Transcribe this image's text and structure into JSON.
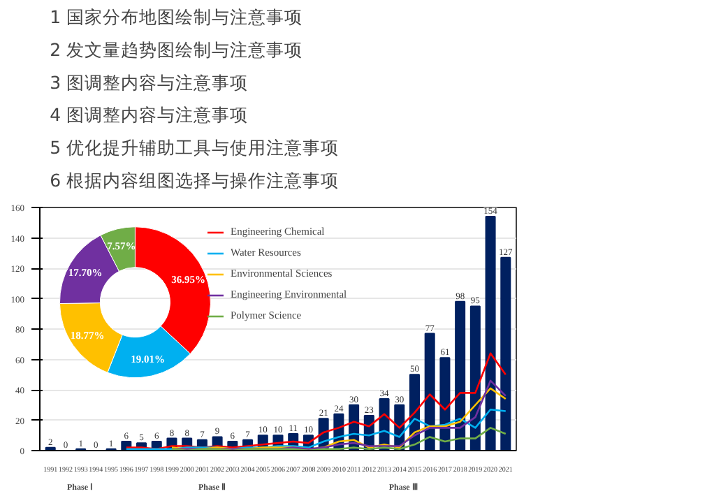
{
  "chart_data": [
    {
      "type": "other",
      "annotations": [
        "1 国家分布地图绘制与注意事项",
        "2 发文量趋势图绘制与注意事项",
        "3 图调整内容与注意事项",
        "4 图调整内容与注意事项",
        "5 优化提升辅助工具与使用注意事项",
        "6 根据内容组图选择与操作注意事项"
      ]
    },
    {
      "type": "bar",
      "categories": [
        "1991",
        "1992",
        "1993",
        "1994",
        "1995",
        "1996",
        "1997",
        "1998",
        "1999",
        "2000",
        "2001",
        "2002",
        "2003",
        "2004",
        "2005",
        "2006",
        "2007",
        "2008",
        "2009",
        "2010",
        "2011",
        "2012",
        "2013",
        "2014",
        "2015",
        "2016",
        "2017",
        "2018",
        "2019",
        "2020",
        "2021"
      ],
      "ylim": [
        0,
        160
      ],
      "yticks": [
        0,
        20,
        40,
        60,
        80,
        100,
        120,
        140,
        160
      ],
      "grid": "y",
      "legend": "top",
      "annotations": [
        "Phase Ⅰ",
        "Phase Ⅱ",
        "Phase Ⅲ"
      ],
      "series": [
        {
          "type": "bar",
          "color": "#002060",
          "values": [
            2,
            0,
            1,
            0,
            1,
            6,
            5,
            6,
            8,
            8,
            7,
            9,
            6,
            7,
            10,
            10,
            11,
            10,
            21,
            24,
            30,
            23,
            34,
            30,
            50,
            77,
            61,
            98,
            95,
            154,
            127
          ],
          "value_labels": [
            "2",
            "0",
            "1",
            "0",
            "1",
            "6",
            "5",
            "6",
            "8",
            "8",
            "7",
            "9",
            "6",
            "7",
            "10",
            "10",
            "11",
            "10",
            "21",
            "24",
            "30",
            "23",
            "34",
            "30",
            "50",
            "77",
            "61",
            "98",
            "95",
            "154",
            "127"
          ]
        },
        {
          "type": "line",
          "name": "Engineering Chemical",
          "color": "#ff0000",
          "values": [
            null,
            null,
            null,
            null,
            null,
            2,
            2,
            1,
            3,
            3,
            2,
            3,
            2,
            3,
            4,
            5,
            6,
            5,
            12,
            15,
            19,
            16,
            24,
            15,
            25,
            37,
            27,
            38,
            38,
            64,
            50
          ]
        },
        {
          "type": "line",
          "name": "Water Resources",
          "color": "#00b0f0",
          "values": [
            null,
            null,
            null,
            null,
            null,
            1,
            1,
            1,
            1,
            2,
            2,
            2,
            1,
            2,
            2,
            3,
            3,
            2,
            6,
            9,
            11,
            10,
            13,
            9,
            21,
            16,
            17,
            21,
            15,
            27,
            26
          ]
        },
        {
          "type": "line",
          "name": "Environmental Sciences",
          "color": "#ffc000",
          "values": [
            null,
            null,
            null,
            null,
            null,
            null,
            null,
            null,
            2,
            1,
            1,
            2,
            1,
            1,
            2,
            2,
            2,
            1,
            2,
            6,
            7,
            2,
            4,
            2,
            12,
            16,
            16,
            19,
            30,
            41,
            34
          ]
        },
        {
          "type": "line",
          "name": "Engineering Environmental",
          "color": "#7030a0",
          "values": [
            null,
            null,
            null,
            null,
            null,
            null,
            null,
            null,
            1,
            1,
            1,
            1,
            1,
            1,
            1,
            1,
            2,
            1,
            2,
            4,
            5,
            3,
            3,
            3,
            10,
            15,
            15,
            15,
            22,
            46,
            36
          ]
        },
        {
          "type": "line",
          "name": "Polymer Science",
          "color": "#70ad47",
          "values": [
            null,
            null,
            null,
            null,
            null,
            null,
            null,
            null,
            1,
            0,
            1,
            1,
            0,
            1,
            1,
            1,
            1,
            0,
            1,
            1,
            2,
            1,
            2,
            1,
            4,
            9,
            6,
            8,
            8,
            15,
            11
          ]
        }
      ]
    },
    {
      "type": "donut",
      "categories": [
        null,
        null,
        null,
        null,
        null
      ],
      "values": [
        36.95,
        19.01,
        18.77,
        17.7,
        7.57
      ],
      "colors": [
        "#ff0000",
        "#00b0f0",
        "#ffc000",
        "#7030a0",
        "#70ad47"
      ],
      "value_labels": [
        "36.95%",
        "19.01%",
        "18.77%",
        "17.70%",
        "7.57%"
      ]
    }
  ]
}
